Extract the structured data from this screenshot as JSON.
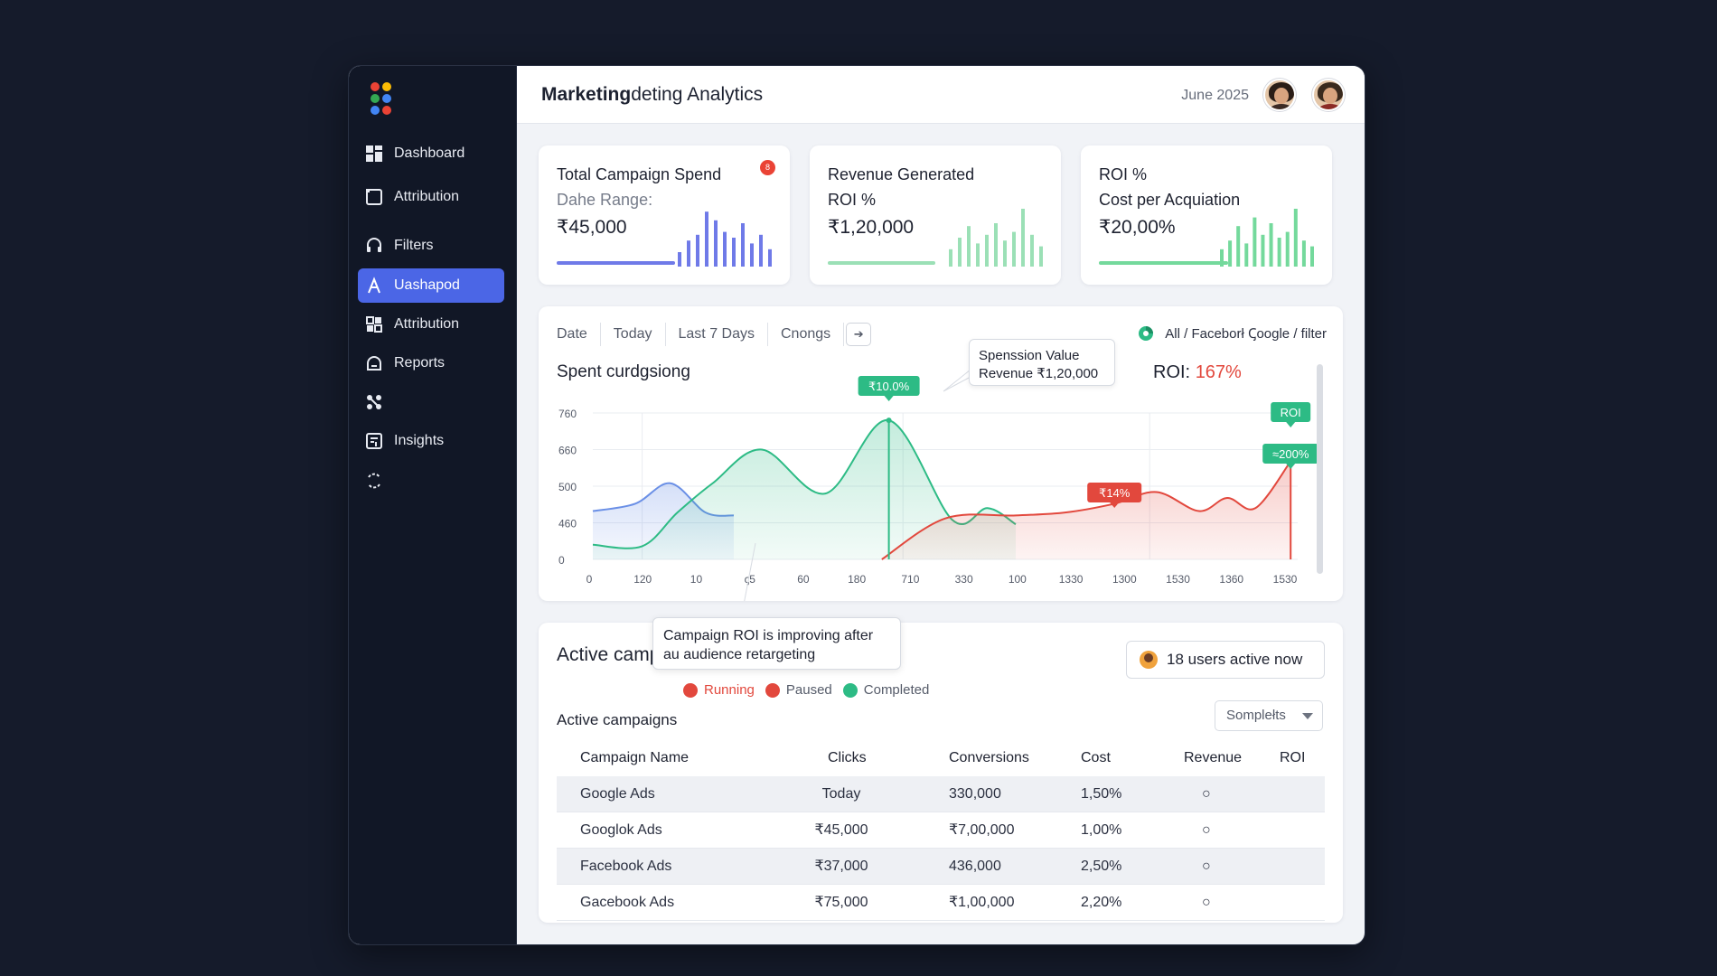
{
  "app": {
    "title_bold": "Marketing",
    "title_rest": "deting Analytics",
    "date": "June 2025"
  },
  "sidebar": {
    "items": [
      {
        "label": "Dashboard",
        "icon": "grid-icon"
      },
      {
        "label": "Attribution",
        "icon": "square-icon"
      },
      {
        "label": "Filters",
        "icon": "headset-icon"
      },
      {
        "label": "Uashapod",
        "icon": "person-icon",
        "active": true
      },
      {
        "label": "Attribution",
        "icon": "widgets-icon"
      },
      {
        "label": "Reports",
        "icon": "cloud-icon"
      },
      {
        "label": "",
        "icon": "apps-icon"
      },
      {
        "label": "Insights",
        "icon": "panel-icon"
      },
      {
        "label": "",
        "icon": "refresh-icon"
      }
    ]
  },
  "kpis": [
    {
      "line1": "Total Campaign Spend",
      "line2": "Dahe Range:",
      "value": "₹45,000",
      "color": "#6f7ae8",
      "badge": "8",
      "bar_fraction": 0.55,
      "spark": [
        0.25,
        0.45,
        0.55,
        0.95,
        0.8,
        0.6,
        0.5,
        0.75,
        0.4,
        0.55,
        0.3
      ]
    },
    {
      "line1": "Revenue Generated",
      "line2": "ROI %",
      "value": "₹1,20,000",
      "color": "#9be0b6",
      "bar_fraction": 0.5,
      "spark": [
        0.3,
        0.5,
        0.7,
        0.4,
        0.55,
        0.75,
        0.45,
        0.6,
        1.0,
        0.55,
        0.35
      ]
    },
    {
      "line1": "ROI %",
      "line2": "Cost per Acquiation",
      "value": "₹20,00%",
      "color": "#74d99c",
      "bar_fraction": 0.6,
      "spark": [
        0.3,
        0.45,
        0.7,
        0.4,
        0.85,
        0.55,
        0.75,
        0.5,
        0.6,
        1.0,
        0.45,
        0.35
      ]
    }
  ],
  "filters": {
    "items": [
      "Date",
      "Today",
      "Last 7 Days",
      "Cnongs"
    ],
    "arrow": "➔",
    "source": "All / Faceborł Ꞔoogle / filter"
  },
  "chart": {
    "title": "Spent curdgsiong",
    "roi_label": "ROI:",
    "roi_value": "167%",
    "tooltip_line1": "Spenssion Value",
    "tooltip_line2": "Revenue ₹1,20,000",
    "markers": {
      "green_peak": "₹10.0%",
      "roi_tag": "ROI",
      "green_right": "≈200%",
      "red_mid": "₹14%"
    }
  },
  "chart_data": {
    "type": "area",
    "y_ticks": [
      "760",
      "660",
      "500",
      "460",
      "0"
    ],
    "x_ticks": [
      "0",
      "120",
      "10",
      "ꞔ5",
      "60",
      "180",
      "710",
      "330",
      "100",
      "1330",
      "1300",
      "1530",
      "1360",
      "1530"
    ],
    "series": [
      {
        "color": "#6a8fe6",
        "points": [
          [
            0,
            0.33
          ],
          [
            0.06,
            0.38
          ],
          [
            0.11,
            0.52
          ],
          [
            0.16,
            0.32
          ],
          [
            0.2,
            0.3
          ]
        ]
      },
      {
        "color": "#2dbb85",
        "points": [
          [
            0,
            0.1
          ],
          [
            0.07,
            0.09
          ],
          [
            0.12,
            0.32
          ],
          [
            0.17,
            0.52
          ],
          [
            0.24,
            0.75
          ],
          [
            0.33,
            0.45
          ],
          [
            0.42,
            0.95
          ],
          [
            0.51,
            0.27
          ],
          [
            0.56,
            0.35
          ],
          [
            0.6,
            0.24
          ]
        ]
      },
      {
        "color": "#e2483d",
        "points": [
          [
            0.41,
            0.0
          ],
          [
            0.5,
            0.28
          ],
          [
            0.6,
            0.3
          ],
          [
            0.67,
            0.32
          ],
          [
            0.74,
            0.38
          ],
          [
            0.8,
            0.46
          ],
          [
            0.86,
            0.33
          ],
          [
            0.9,
            0.42
          ],
          [
            0.94,
            0.35
          ],
          [
            0.99,
            0.67
          ]
        ]
      }
    ]
  },
  "table_section": {
    "title": "Active camp",
    "callout_line1": "Campaign ROI is improving after",
    "callout_line2": "au audience retargeting",
    "users": "18 users active now",
    "legend": [
      {
        "label": "Running",
        "color": "#e2483d"
      },
      {
        "label": "Paused",
        "color": "#e2483d"
      },
      {
        "label": "Completed",
        "color": "#2dbb85"
      }
    ],
    "subtitle": "Active campaigns",
    "select": "Somplełts",
    "headers": [
      "Campaign Name",
      "Clicks",
      "Conversions",
      "Cost",
      "Revenue",
      "ROI"
    ],
    "rows": [
      {
        "name": "Google Ads",
        "clicks": "Today",
        "conversions": "330,000",
        "cost": "1,50%",
        "revenue": "○"
      },
      {
        "name": "Googlok Ads",
        "clicks": "₹45,000",
        "conversions": "₹7,00,000",
        "cost": "1,00%",
        "revenue": "○"
      },
      {
        "name": "Facebook Ads",
        "clicks": "₹37,000",
        "conversions": "436,000",
        "cost": "2,50%",
        "revenue": "○"
      },
      {
        "name": "Gacebook Ads",
        "clicks": "₹75,000",
        "conversions": "₹1,00,000",
        "cost": "2,20%",
        "revenue": "○"
      }
    ]
  }
}
